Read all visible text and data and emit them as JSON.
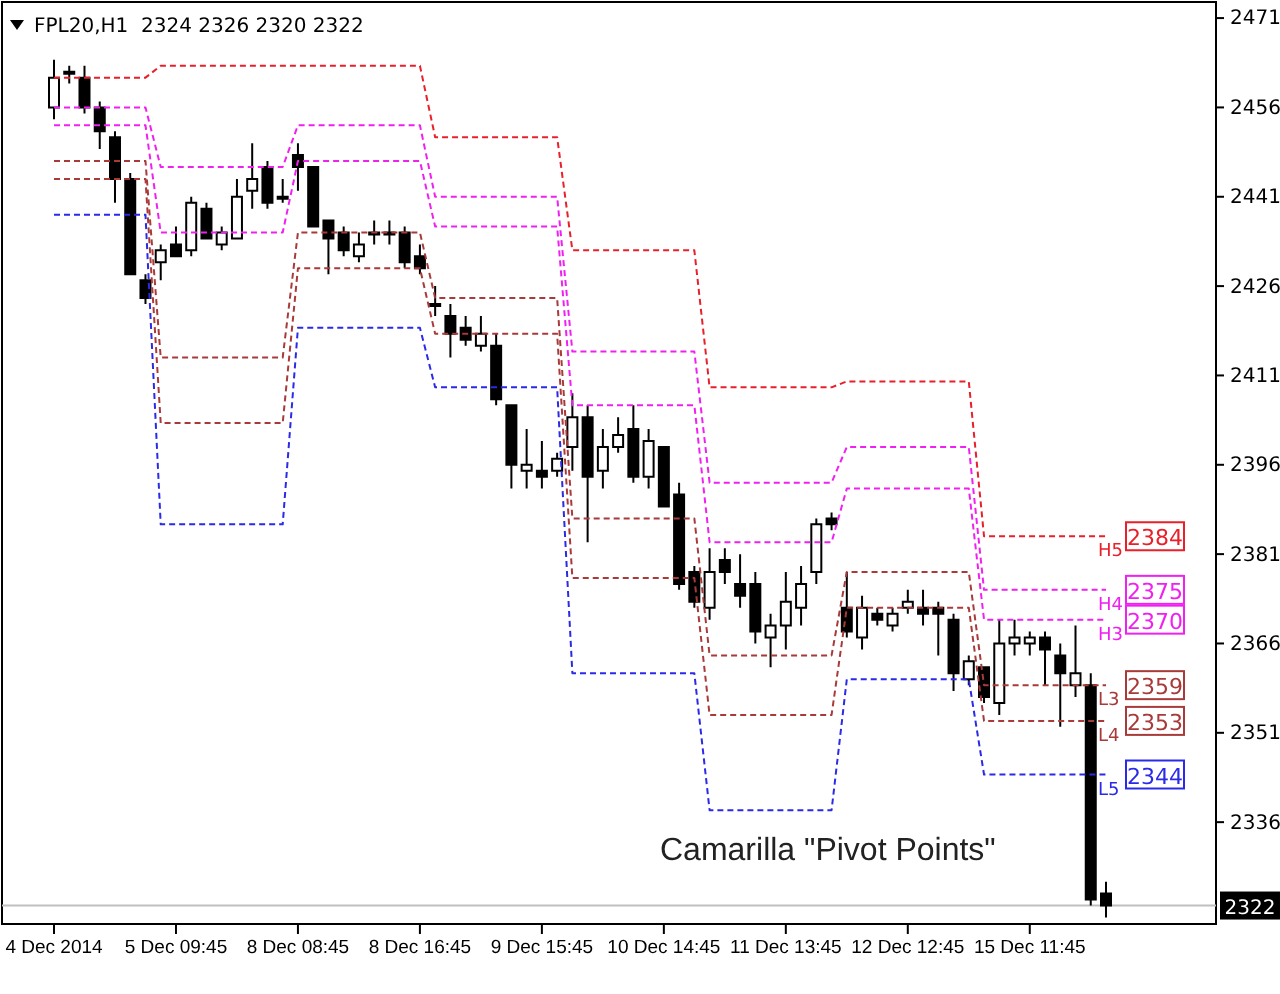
{
  "chart_data": {
    "type": "candlestick",
    "title": "FPL20,H1  2324 2326 2320 2322",
    "categories": [
      "4 Dec 2014",
      null,
      null,
      null,
      null,
      null,
      null,
      null,
      "5 Dec 09:45",
      null,
      null,
      null,
      null,
      null,
      null,
      null,
      "8 Dec 08:45",
      null,
      null,
      null,
      null,
      null,
      null,
      null,
      "8 Dec 16:45",
      null,
      null,
      null,
      null,
      null,
      null,
      null,
      "9 Dec 15:45",
      null,
      null,
      null,
      null,
      null,
      null,
      null,
      "10 Dec 14:45",
      null,
      null,
      null,
      null,
      null,
      null,
      null,
      "11 Dec 13:45",
      null,
      null,
      null,
      null,
      null,
      null,
      null,
      "12 Dec 12:45",
      null,
      null,
      null,
      null,
      null,
      null,
      null,
      "15 Dec 11:45",
      null,
      null,
      null,
      null,
      null
    ],
    "ohlc": [
      [
        2456,
        2464,
        2454,
        2461
      ],
      [
        2462,
        2463,
        2460,
        2462
      ],
      [
        2461,
        2463,
        2455,
        2456
      ],
      [
        2456,
        2457,
        2449,
        2452
      ],
      [
        2451,
        2452,
        2440,
        2444
      ],
      [
        2444,
        2445,
        2428,
        2428
      ],
      [
        2427,
        2428,
        2423,
        2424
      ],
      [
        2430,
        2433,
        2427,
        2432
      ],
      [
        2433,
        2436,
        2431,
        2431
      ],
      [
        2432,
        2441,
        2431,
        2440
      ],
      [
        2439,
        2440,
        2434,
        2434
      ],
      [
        2433,
        2436,
        2432,
        2435
      ],
      [
        2434,
        2444,
        2434,
        2441
      ],
      [
        2442,
        2450,
        2439,
        2444
      ],
      [
        2446,
        2447,
        2439,
        2440
      ],
      [
        2441,
        2444,
        2440,
        2441
      ],
      [
        2448,
        2450,
        2442,
        2446
      ],
      [
        2446,
        2446,
        2436,
        2436
      ],
      [
        2437,
        2437,
        2428,
        2434
      ],
      [
        2435,
        2436,
        2431,
        2432
      ],
      [
        2431,
        2435,
        2430,
        2433
      ],
      [
        2435,
        2437,
        2433,
        2435
      ],
      [
        2435,
        2437,
        2433,
        2435
      ],
      [
        2435,
        2436,
        2429,
        2430
      ],
      [
        2431,
        2433,
        2428,
        2429
      ],
      [
        2423,
        2426,
        2421,
        2423
      ],
      [
        2421,
        2423,
        2414,
        2418
      ],
      [
        2419,
        2421,
        2416,
        2417
      ],
      [
        2416,
        2421,
        2415,
        2418
      ],
      [
        2416,
        2418,
        2406,
        2407
      ],
      [
        2406,
        2406,
        2392,
        2396
      ],
      [
        2395,
        2402,
        2392,
        2396
      ],
      [
        2395,
        2400,
        2392,
        2394
      ],
      [
        2395,
        2398,
        2394,
        2397
      ],
      [
        2399,
        2408,
        2395,
        2404
      ],
      [
        2404,
        2406,
        2383,
        2394
      ],
      [
        2395,
        2402,
        2392,
        2399
      ],
      [
        2399,
        2404,
        2398,
        2401
      ],
      [
        2402,
        2406,
        2393,
        2394
      ],
      [
        2394,
        2402,
        2392,
        2400
      ],
      [
        2399,
        2399,
        2389,
        2389
      ],
      [
        2391,
        2393,
        2375,
        2376
      ],
      [
        2378,
        2379,
        2372,
        2373
      ],
      [
        2372,
        2382,
        2370,
        2378
      ],
      [
        2380,
        2382,
        2376,
        2378
      ],
      [
        2376,
        2381,
        2372,
        2374
      ],
      [
        2376,
        2378,
        2366,
        2368
      ],
      [
        2367,
        2371,
        2362,
        2369
      ],
      [
        2369,
        2378,
        2365,
        2373
      ],
      [
        2372,
        2379,
        2369,
        2376
      ],
      [
        2378,
        2387,
        2376,
        2386
      ],
      [
        2387,
        2388,
        2385,
        2386
      ],
      [
        2372,
        2378,
        2367,
        2368
      ],
      [
        2367,
        2374,
        2365,
        2372
      ],
      [
        2371,
        2372,
        2369,
        2370
      ],
      [
        2369,
        2372,
        2368,
        2371
      ],
      [
        2372,
        2375,
        2371,
        2373
      ],
      [
        2372,
        2375,
        2369,
        2371
      ],
      [
        2372,
        2373,
        2364,
        2371
      ],
      [
        2370,
        2371,
        2358,
        2361
      ],
      [
        2360,
        2364,
        2359,
        2363
      ],
      [
        2362,
        2362,
        2356,
        2357
      ],
      [
        2356,
        2370,
        2354,
        2366
      ],
      [
        2366,
        2370,
        2364,
        2367
      ],
      [
        2366,
        2368,
        2364,
        2367
      ],
      [
        2367,
        2368,
        2359,
        2365
      ],
      [
        2364,
        2366,
        2352,
        2361
      ],
      [
        2359,
        2369,
        2357,
        2361
      ],
      [
        2359,
        2361,
        2322,
        2323
      ],
      [
        2324,
        2326,
        2320,
        2322
      ]
    ],
    "series": [
      {
        "name": "H5",
        "type": "line",
        "color": "#e8202a",
        "values": [
          2461,
          2461,
          2461,
          2461,
          2461,
          2461,
          2461,
          2463,
          2463,
          2463,
          2463,
          2463,
          2463,
          2463,
          2463,
          2463,
          2463,
          2463,
          2463,
          2463,
          2463,
          2463,
          2463,
          2463,
          2463,
          2451,
          2451,
          2451,
          2451,
          2451,
          2451,
          2451,
          2451,
          2451,
          2432,
          2432,
          2432,
          2432,
          2432,
          2432,
          2432,
          2432,
          2432,
          2409,
          2409,
          2409,
          2409,
          2409,
          2409,
          2409,
          2409,
          2409,
          2410,
          2410,
          2410,
          2410,
          2410,
          2410,
          2410,
          2410,
          2410,
          2384,
          2384,
          2384,
          2384,
          2384,
          2384,
          2384,
          2384,
          2384
        ],
        "value_labels": [
          null,
          null,
          null,
          null,
          null,
          null,
          null,
          null,
          null,
          null,
          null,
          null,
          null,
          null,
          null,
          null,
          null,
          null,
          null,
          null,
          null,
          null,
          null,
          null,
          null,
          null,
          null,
          null,
          null,
          null,
          null,
          null,
          null,
          null,
          null,
          null,
          null,
          null,
          null,
          null,
          null,
          null,
          null,
          null,
          null,
          null,
          null,
          null,
          null,
          null,
          null,
          null,
          null,
          null,
          null,
          null,
          null,
          null,
          null,
          null,
          null,
          null,
          null,
          null,
          null,
          null,
          null,
          null,
          null,
          "2384"
        ]
      },
      {
        "name": "H4",
        "type": "line",
        "color": "#f020f0",
        "values": [
          2456,
          2456,
          2456,
          2456,
          2456,
          2456,
          2456,
          2446,
          2446,
          2446,
          2446,
          2446,
          2446,
          2446,
          2446,
          2446,
          2453,
          2453,
          2453,
          2453,
          2453,
          2453,
          2453,
          2453,
          2453,
          2441,
          2441,
          2441,
          2441,
          2441,
          2441,
          2441,
          2441,
          2441,
          2415,
          2415,
          2415,
          2415,
          2415,
          2415,
          2415,
          2415,
          2415,
          2393,
          2393,
          2393,
          2393,
          2393,
          2393,
          2393,
          2393,
          2393,
          2399,
          2399,
          2399,
          2399,
          2399,
          2399,
          2399,
          2399,
          2399,
          2375,
          2375,
          2375,
          2375,
          2375,
          2375,
          2375,
          2375,
          2375
        ],
        "value_labels": [
          null,
          null,
          null,
          null,
          null,
          null,
          null,
          null,
          null,
          null,
          null,
          null,
          null,
          null,
          null,
          null,
          null,
          null,
          null,
          null,
          null,
          null,
          null,
          null,
          null,
          null,
          null,
          null,
          null,
          null,
          null,
          null,
          null,
          null,
          null,
          null,
          null,
          null,
          null,
          null,
          null,
          null,
          null,
          null,
          null,
          null,
          null,
          null,
          null,
          null,
          null,
          null,
          null,
          null,
          null,
          null,
          null,
          null,
          null,
          null,
          null,
          null,
          null,
          null,
          null,
          null,
          null,
          null,
          null,
          "2375"
        ]
      },
      {
        "name": "H3",
        "type": "line",
        "color": "#f020f0",
        "values": [
          2453,
          2453,
          2453,
          2453,
          2453,
          2453,
          2453,
          2435,
          2435,
          2435,
          2435,
          2435,
          2435,
          2435,
          2435,
          2435,
          2447,
          2447,
          2447,
          2447,
          2447,
          2447,
          2447,
          2447,
          2447,
          2436,
          2436,
          2436,
          2436,
          2436,
          2436,
          2436,
          2436,
          2436,
          2406,
          2406,
          2406,
          2406,
          2406,
          2406,
          2406,
          2406,
          2406,
          2383,
          2383,
          2383,
          2383,
          2383,
          2383,
          2383,
          2383,
          2383,
          2392,
          2392,
          2392,
          2392,
          2392,
          2392,
          2392,
          2392,
          2392,
          2370,
          2370,
          2370,
          2370,
          2370,
          2370,
          2370,
          2370,
          2370
        ],
        "value_labels": [
          null,
          null,
          null,
          null,
          null,
          null,
          null,
          null,
          null,
          null,
          null,
          null,
          null,
          null,
          null,
          null,
          null,
          null,
          null,
          null,
          null,
          null,
          null,
          null,
          null,
          null,
          null,
          null,
          null,
          null,
          null,
          null,
          null,
          null,
          null,
          null,
          null,
          null,
          null,
          null,
          null,
          null,
          null,
          null,
          null,
          null,
          null,
          null,
          null,
          null,
          null,
          null,
          null,
          null,
          null,
          null,
          null,
          null,
          null,
          null,
          null,
          null,
          null,
          null,
          null,
          null,
          null,
          null,
          null,
          "2370"
        ]
      },
      {
        "name": "L3",
        "type": "line",
        "color": "#a83a3a",
        "values": [
          2447,
          2447,
          2447,
          2447,
          2447,
          2447,
          2447,
          2414,
          2414,
          2414,
          2414,
          2414,
          2414,
          2414,
          2414,
          2414,
          2435,
          2435,
          2435,
          2435,
          2435,
          2435,
          2435,
          2435,
          2435,
          2424,
          2424,
          2424,
          2424,
          2424,
          2424,
          2424,
          2424,
          2424,
          2387,
          2387,
          2387,
          2387,
          2387,
          2387,
          2387,
          2387,
          2387,
          2364,
          2364,
          2364,
          2364,
          2364,
          2364,
          2364,
          2364,
          2364,
          2378,
          2378,
          2378,
          2378,
          2378,
          2378,
          2378,
          2378,
          2378,
          2359,
          2359,
          2359,
          2359,
          2359,
          2359,
          2359,
          2359,
          2359
        ],
        "value_labels": [
          null,
          null,
          null,
          null,
          null,
          null,
          null,
          null,
          null,
          null,
          null,
          null,
          null,
          null,
          null,
          null,
          null,
          null,
          null,
          null,
          null,
          null,
          null,
          null,
          null,
          null,
          null,
          null,
          null,
          null,
          null,
          null,
          null,
          null,
          null,
          null,
          null,
          null,
          null,
          null,
          null,
          null,
          null,
          null,
          null,
          null,
          null,
          null,
          null,
          null,
          null,
          null,
          null,
          null,
          null,
          null,
          null,
          null,
          null,
          null,
          null,
          null,
          null,
          null,
          null,
          null,
          null,
          null,
          null,
          "2359"
        ]
      },
      {
        "name": "L4",
        "type": "line",
        "color": "#a83a3a",
        "values": [
          2444,
          2444,
          2444,
          2444,
          2444,
          2444,
          2444,
          2403,
          2403,
          2403,
          2403,
          2403,
          2403,
          2403,
          2403,
          2403,
          2429,
          2429,
          2429,
          2429,
          2429,
          2429,
          2429,
          2429,
          2429,
          2418,
          2418,
          2418,
          2418,
          2418,
          2418,
          2418,
          2418,
          2418,
          2377,
          2377,
          2377,
          2377,
          2377,
          2377,
          2377,
          2377,
          2377,
          2354,
          2354,
          2354,
          2354,
          2354,
          2354,
          2354,
          2354,
          2354,
          2372,
          2372,
          2372,
          2372,
          2372,
          2372,
          2372,
          2372,
          2372,
          2353,
          2353,
          2353,
          2353,
          2353,
          2353,
          2353,
          2353,
          2353
        ],
        "value_labels": [
          null,
          null,
          null,
          null,
          null,
          null,
          null,
          null,
          null,
          null,
          null,
          null,
          null,
          null,
          null,
          null,
          null,
          null,
          null,
          null,
          null,
          null,
          null,
          null,
          null,
          null,
          null,
          null,
          null,
          null,
          null,
          null,
          null,
          null,
          null,
          null,
          null,
          null,
          null,
          null,
          null,
          null,
          null,
          null,
          null,
          null,
          null,
          null,
          null,
          null,
          null,
          null,
          null,
          null,
          null,
          null,
          null,
          null,
          null,
          null,
          null,
          null,
          null,
          null,
          null,
          null,
          null,
          null,
          null,
          "2353"
        ]
      },
      {
        "name": "L5",
        "type": "line",
        "color": "#2a2ae8",
        "values": [
          2438,
          2438,
          2438,
          2438,
          2438,
          2438,
          2438,
          2386,
          2386,
          2386,
          2386,
          2386,
          2386,
          2386,
          2386,
          2386,
          2419,
          2419,
          2419,
          2419,
          2419,
          2419,
          2419,
          2419,
          2419,
          2409,
          2409,
          2409,
          2409,
          2409,
          2409,
          2409,
          2409,
          2409,
          2361,
          2361,
          2361,
          2361,
          2361,
          2361,
          2361,
          2361,
          2361,
          2338,
          2338,
          2338,
          2338,
          2338,
          2338,
          2338,
          2338,
          2338,
          2360,
          2360,
          2360,
          2360,
          2360,
          2360,
          2360,
          2360,
          2360,
          2344,
          2344,
          2344,
          2344,
          2344,
          2344,
          2344,
          2344,
          2344
        ],
        "value_labels": [
          null,
          null,
          null,
          null,
          null,
          null,
          null,
          null,
          null,
          null,
          null,
          null,
          null,
          null,
          null,
          null,
          null,
          null,
          null,
          null,
          null,
          null,
          null,
          null,
          null,
          null,
          null,
          null,
          null,
          null,
          null,
          null,
          null,
          null,
          null,
          null,
          null,
          null,
          null,
          null,
          null,
          null,
          null,
          null,
          null,
          null,
          null,
          null,
          null,
          null,
          null,
          null,
          null,
          null,
          null,
          null,
          null,
          null,
          null,
          null,
          null,
          null,
          null,
          null,
          null,
          null,
          null,
          null,
          null,
          "2344"
        ]
      }
    ],
    "line_style": "dashed",
    "ylim": [
      2318.9,
      2473.7
    ],
    "yticks": [
      2471,
      2456,
      2441,
      2426,
      2411,
      2396,
      2381,
      2366,
      2351,
      2336
    ],
    "ref_lines": [
      {
        "axis": "y",
        "value": 2322,
        "label": "2322",
        "color": "#c0c0c0"
      }
    ],
    "annotations": [
      "Camarilla \"Pivot Points\""
    ]
  }
}
